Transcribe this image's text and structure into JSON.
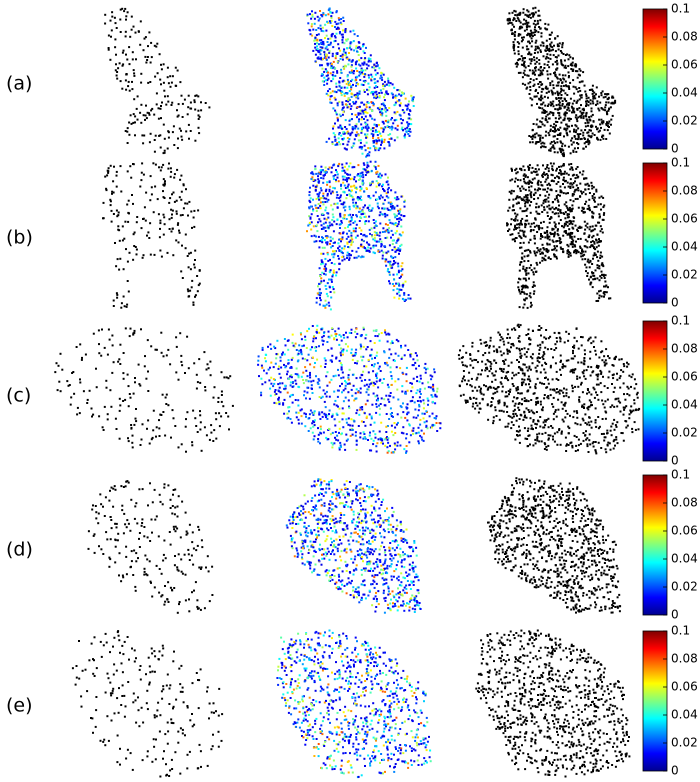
{
  "rows": [
    {
      "label": "(a)",
      "colorbar": {
        "ticks": [
          0,
          0.02,
          0.04,
          0.06,
          0.08,
          0.1
        ]
      }
    },
    {
      "label": "(b)",
      "colorbar": {
        "ticks": [
          0,
          0.02,
          0.04,
          0.06,
          0.08,
          0.1
        ]
      }
    },
    {
      "label": "(c)",
      "colorbar": {
        "ticks": [
          0,
          0.02,
          0.04,
          0.06,
          0.08,
          0.1
        ]
      }
    },
    {
      "label": "(d)",
      "colorbar": {
        "ticks": [
          0,
          0.02,
          0.04,
          0.06,
          0.08,
          0.1
        ]
      }
    },
    {
      "label": "(e)",
      "colorbar": {
        "ticks": [
          0,
          0.02,
          0.04,
          0.06,
          0.08,
          0.1
        ]
      }
    }
  ]
}
